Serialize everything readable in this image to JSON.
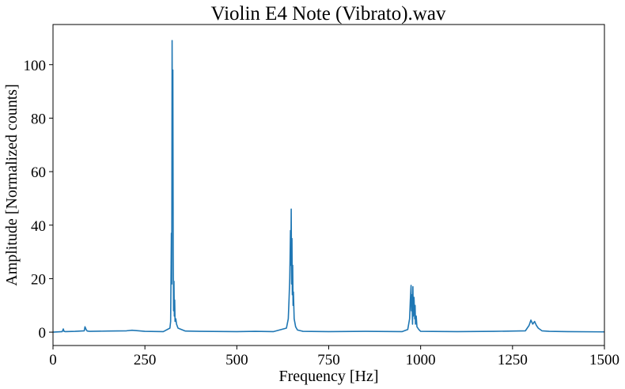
{
  "chart_data": {
    "type": "line",
    "title": "Violin E4 Note (Vibrato).wav",
    "xlabel": "Frequency [Hz]",
    "ylabel": "Amplitude [Normalized counts]",
    "xlim": [
      0,
      1500
    ],
    "ylim": [
      -5,
      115
    ],
    "xticks": [
      0,
      250,
      500,
      750,
      1000,
      1250,
      1500
    ],
    "yticks": [
      0,
      20,
      40,
      60,
      80,
      100
    ],
    "grid": false,
    "legend": "none",
    "line_color": "#1f77b4",
    "series": [
      {
        "x": [
          0,
          25,
          28,
          30,
          33,
          60,
          85,
          87,
          90,
          93,
          100,
          150,
          200,
          215,
          250,
          300,
          318,
          320,
          322,
          323,
          324,
          325,
          326,
          327,
          328,
          329,
          330,
          331,
          332,
          334,
          336,
          340,
          360,
          400,
          500,
          550,
          600,
          635,
          640,
          642,
          644,
          646,
          647,
          648,
          649,
          650,
          651,
          652,
          653,
          654,
          656,
          660,
          665,
          680,
          750,
          850,
          950,
          965,
          970,
          972,
          974,
          975,
          976,
          978,
          979,
          980,
          982,
          984,
          985,
          986,
          988,
          990,
          995,
          1000,
          1100,
          1200,
          1285,
          1295,
          1300,
          1305,
          1310,
          1315,
          1320,
          1330,
          1350,
          1400,
          1500
        ],
        "y": [
          0,
          0.2,
          1.2,
          0.3,
          0.2,
          0.3,
          0.5,
          2.0,
          1.0,
          0.4,
          0.3,
          0.4,
          0.5,
          0.7,
          0.3,
          0.2,
          1.5,
          4,
          37,
          18,
          109,
          60,
          98,
          30,
          8,
          19,
          6,
          12,
          4,
          5,
          3,
          1.5,
          0.4,
          0.3,
          0.2,
          0.3,
          0.2,
          1.5,
          5,
          12,
          20,
          38,
          25,
          46,
          18,
          35,
          14,
          25,
          10,
          15,
          5,
          2,
          0.8,
          0.3,
          0.2,
          0.3,
          0.2,
          1.0,
          5,
          12,
          17.5,
          8,
          14,
          3,
          17,
          6,
          13,
          5,
          10,
          3,
          6,
          2,
          1,
          0.3,
          0.2,
          0.3,
          0.5,
          2.5,
          4.5,
          3,
          4,
          2.5,
          1.5,
          0.5,
          0.3,
          0.2,
          0.1
        ]
      }
    ]
  }
}
